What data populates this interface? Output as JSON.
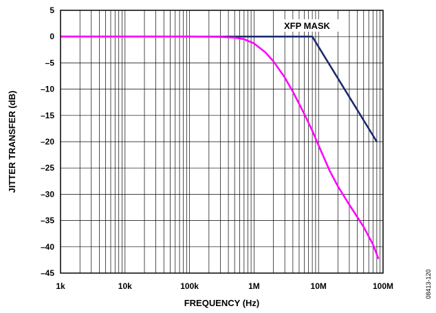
{
  "chart_data": {
    "type": "line",
    "xlabel": "FREQUENCY (Hz)",
    "ylabel": "JITTER TRANSFER (dB)",
    "x_scale": "log",
    "xlim": [
      1000,
      100000000
    ],
    "ylim": [
      -45,
      5
    ],
    "x_ticks": [
      {
        "value": 1000,
        "label": "1k"
      },
      {
        "value": 10000,
        "label": "10k"
      },
      {
        "value": 100000,
        "label": "100k"
      },
      {
        "value": 1000000,
        "label": "1M"
      },
      {
        "value": 10000000,
        "label": "10M"
      },
      {
        "value": 100000000,
        "label": "100M"
      }
    ],
    "y_ticks": [
      {
        "value": 5,
        "label": "5"
      },
      {
        "value": 0,
        "label": "0"
      },
      {
        "value": -5,
        "label": "–5"
      },
      {
        "value": -10,
        "label": "–10"
      },
      {
        "value": -15,
        "label": "–15"
      },
      {
        "value": -20,
        "label": "–20"
      },
      {
        "value": -25,
        "label": "–25"
      },
      {
        "value": -30,
        "label": "–30"
      },
      {
        "value": -35,
        "label": "–35"
      },
      {
        "value": -40,
        "label": "–40"
      },
      {
        "value": -45,
        "label": "–45"
      }
    ],
    "grid": true,
    "annotation": "XFP MASK",
    "figure_id": "08413-120",
    "series": [
      {
        "color": "#1a2a6c",
        "points": [
          [
            1000,
            0
          ],
          [
            8000000,
            0
          ],
          [
            80000000,
            -20
          ]
        ]
      },
      {
        "color": "#ff00ff",
        "points": [
          [
            1000,
            0
          ],
          [
            100000,
            0
          ],
          [
            200000,
            -0.02
          ],
          [
            300000,
            -0.05
          ],
          [
            500000,
            -0.2
          ],
          [
            700000,
            -0.5
          ],
          [
            1000000,
            -1.3
          ],
          [
            1500000,
            -3
          ],
          [
            2000000,
            -4.7
          ],
          [
            3000000,
            -7.8
          ],
          [
            4000000,
            -10.5
          ],
          [
            5000000,
            -12.8
          ],
          [
            6000000,
            -14.7
          ],
          [
            8000000,
            -17.9
          ],
          [
            10000000,
            -20.7
          ],
          [
            15000000,
            -25.6
          ],
          [
            20000000,
            -28.5
          ],
          [
            30000000,
            -32
          ],
          [
            50000000,
            -36.2
          ],
          [
            70000000,
            -39.6
          ],
          [
            85000000,
            -42.3
          ]
        ]
      }
    ]
  }
}
